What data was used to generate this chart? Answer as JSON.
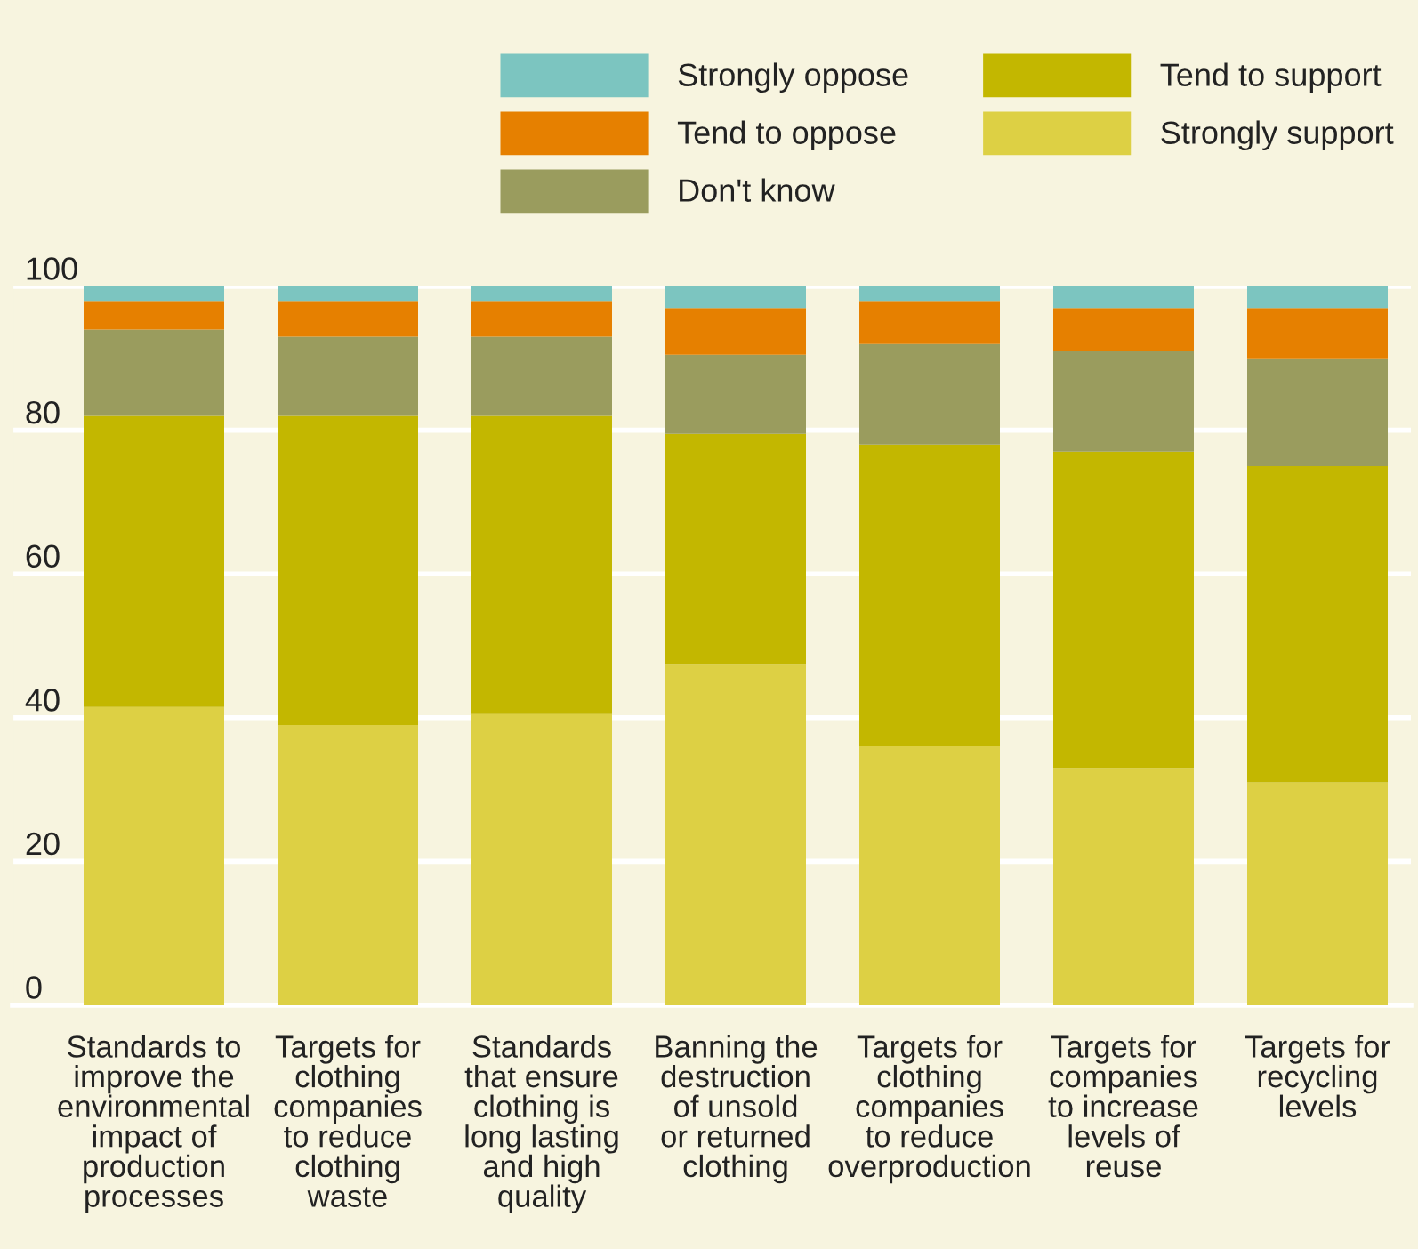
{
  "chart_data": {
    "type": "bar",
    "stacked": true,
    "categories": [
      "Standards to\nimprove the\nenvironmental\nimpact of\nproduction\nprocesses",
      "Targets for\nclothing\ncompanies\nto reduce\nclothing\nwaste",
      "Standards\nthat ensure\nclothing is\nlong lasting\nand high\nquality",
      "Banning the\ndestruction\nof unsold\nor returned\nclothing",
      "Targets for\nclothing\ncompanies\nto reduce\noverproduction",
      "Targets for\ncompanies\nto increase\nlevels of\nreuse",
      "Targets for\nrecycling\nlevels"
    ],
    "series": [
      {
        "name": "Strongly support",
        "color": "#ddd044",
        "values": [
          41.5,
          39,
          40.5,
          47.5,
          36,
          33,
          31
        ]
      },
      {
        "name": "Tend to support",
        "color": "#c3b700",
        "values": [
          40.5,
          43,
          41.5,
          32,
          42,
          44,
          44
        ]
      },
      {
        "name": "Don't know",
        "color": "#9a9c5e",
        "values": [
          12,
          11,
          11,
          11,
          14,
          14,
          15
        ]
      },
      {
        "name": "Tend to oppose",
        "color": "#e68000",
        "values": [
          4,
          5,
          5,
          6.5,
          6,
          6,
          7
        ]
      },
      {
        "name": "Strongly oppose",
        "color": "#7cc5c0",
        "values": [
          2,
          2,
          2,
          3,
          2,
          3,
          3
        ]
      }
    ],
    "ylim": [
      0,
      100
    ],
    "yticks": [
      0,
      20,
      40,
      60,
      80,
      100
    ],
    "grid": "y",
    "legend": "top right"
  }
}
